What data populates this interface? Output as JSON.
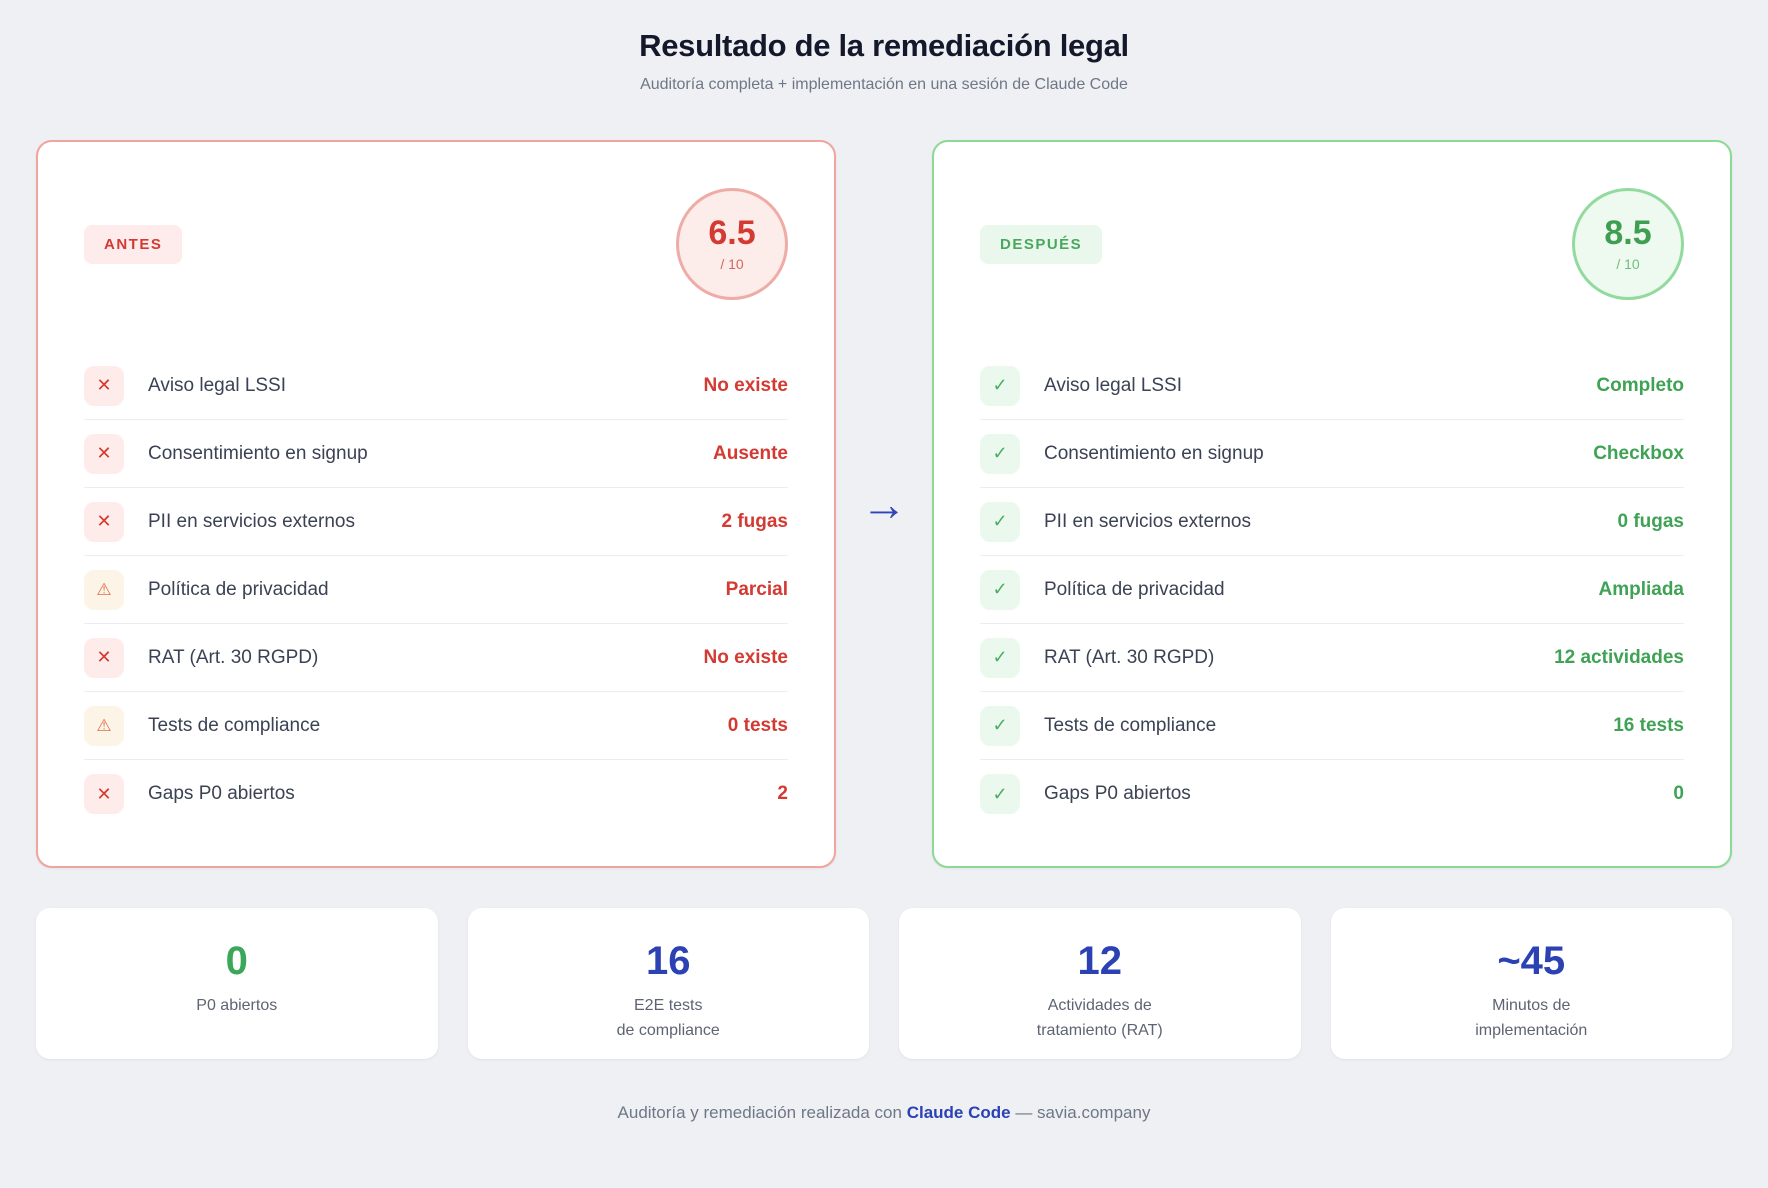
{
  "header": {
    "title": "Resultado de la remediación legal",
    "subtitle": "Auditoría completa + implementación en una sesión de Claude Code"
  },
  "icons": {
    "x": "✕",
    "warning": "⚠",
    "check": "✓",
    "arrow": "→"
  },
  "before": {
    "badge": "ANTES",
    "score": "6.5",
    "score_suffix": "/ 10",
    "rows": [
      {
        "icon": "x-icon",
        "label": "Aviso legal LSSI",
        "value": "No existe"
      },
      {
        "icon": "x-icon",
        "label": "Consentimiento en signup",
        "value": "Ausente"
      },
      {
        "icon": "x-icon",
        "label": "PII en servicios externos",
        "value": "2 fugas"
      },
      {
        "icon": "warning-icon",
        "label": "Política de privacidad",
        "value": "Parcial"
      },
      {
        "icon": "x-icon",
        "label": "RAT (Art. 30 RGPD)",
        "value": "No existe"
      },
      {
        "icon": "warning-icon",
        "label": "Tests de compliance",
        "value": "0 tests"
      },
      {
        "icon": "x-icon",
        "label": "Gaps P0 abiertos",
        "value": "2"
      }
    ]
  },
  "after": {
    "badge": "DESPUÉS",
    "score": "8.5",
    "score_suffix": "/ 10",
    "rows": [
      {
        "icon": "check-icon",
        "label": "Aviso legal LSSI",
        "value": "Completo"
      },
      {
        "icon": "check-icon",
        "label": "Consentimiento en signup",
        "value": "Checkbox"
      },
      {
        "icon": "check-icon",
        "label": "PII en servicios externos",
        "value": "0 fugas"
      },
      {
        "icon": "check-icon",
        "label": "Política de privacidad",
        "value": "Ampliada"
      },
      {
        "icon": "check-icon",
        "label": "RAT (Art. 30 RGPD)",
        "value": "12 actividades"
      },
      {
        "icon": "check-icon",
        "label": "Tests de compliance",
        "value": "16 tests"
      },
      {
        "icon": "check-icon",
        "label": "Gaps P0 abiertos",
        "value": "0"
      }
    ]
  },
  "stats": [
    {
      "value": "0",
      "color": "green",
      "line1": "P0 abiertos",
      "line2": ""
    },
    {
      "value": "16",
      "color": "blue",
      "line1": "E2E tests",
      "line2": "de compliance"
    },
    {
      "value": "12",
      "color": "blue",
      "line1": "Actividades de",
      "line2": "tratamiento (RAT)"
    },
    {
      "value": "~45",
      "color": "blue",
      "line1": "Minutos de",
      "line2": "implementación"
    }
  ],
  "footer": {
    "prefix": "Auditoría y remediación realizada con ",
    "brand": "Claude Code",
    "suffix": " — savia.company"
  },
  "colors": {
    "page_bg": "#eef0f4",
    "red": "#d23a32",
    "red_bg": "#fdeceb",
    "red_border": "#f0a49e",
    "orange": "#e06e47",
    "orange_bg": "#fdf4e8",
    "green": "#3fa254",
    "green_bg": "#eaf7ec",
    "green_border": "#8cd997",
    "blue": "#2b41b4",
    "text_dark": "#14182b",
    "text_label": "#3b4254",
    "text_gray": "#6f7787"
  }
}
